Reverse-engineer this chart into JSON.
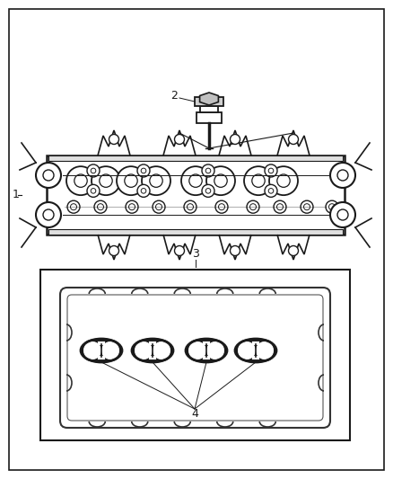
{
  "bg_color": "#ffffff",
  "lc": "#1a1a1a",
  "lc_thin": "#555555",
  "label_1": "1",
  "label_2": "2",
  "label_3": "3",
  "label_4": "4",
  "fig_w": 4.38,
  "fig_h": 5.33,
  "dpi": 100
}
